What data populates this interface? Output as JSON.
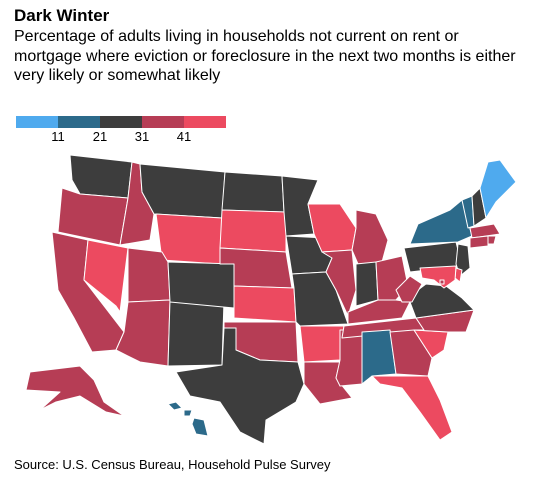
{
  "title": "Dark Winter",
  "subtitle": "Percentage of adults living in households not current on rent or mortgage where eviction or foreclosure in the next two months is either very likely or somewhat likely",
  "legend": {
    "ticks": [
      "11",
      "21",
      "31",
      "41"
    ],
    "colors": [
      "#4faaee",
      "#2c6a8a",
      "#3d3d3d",
      "#b63d55",
      "#ec4a60"
    ]
  },
  "source": "Source: U.S. Census Bureau, Household Pulse Survey",
  "map_data": {
    "bins": [
      {
        "label": "below 11",
        "color": "#4faaee"
      },
      {
        "label": "11–21",
        "color": "#2c6a8a"
      },
      {
        "label": "21–31",
        "color": "#3d3d3d"
      },
      {
        "label": "31–41",
        "color": "#b63d55"
      },
      {
        "label": "41+",
        "color": "#ec4a60"
      }
    ],
    "states": {
      "WA": 2,
      "OR": 3,
      "CA": 3,
      "NV": 4,
      "ID": 3,
      "MT": 2,
      "WY": 4,
      "UT": 3,
      "AZ": 3,
      "NM": 2,
      "CO": 2,
      "ND": 2,
      "SD": 4,
      "NE": 3,
      "KS": 4,
      "OK": 3,
      "TX": 2,
      "MN": 2,
      "IA": 2,
      "MO": 2,
      "AR": 4,
      "LA": 3,
      "WI": 4,
      "IL": 3,
      "MS": 3,
      "MI": 3,
      "IN": 2,
      "OH": 3,
      "KY": 3,
      "TN": 3,
      "AL": 1,
      "GA": 3,
      "FL": 4,
      "SC": 4,
      "NC": 3,
      "VA": 2,
      "WV": 3,
      "PA": 2,
      "NY": 1,
      "VT": 1,
      "NH": 2,
      "ME": 0,
      "MA": 3,
      "RI": 3,
      "CT": 3,
      "NJ": 2,
      "DE": 4,
      "MD": 4,
      "DC": 3,
      "AK": 3,
      "HI": 1
    }
  }
}
